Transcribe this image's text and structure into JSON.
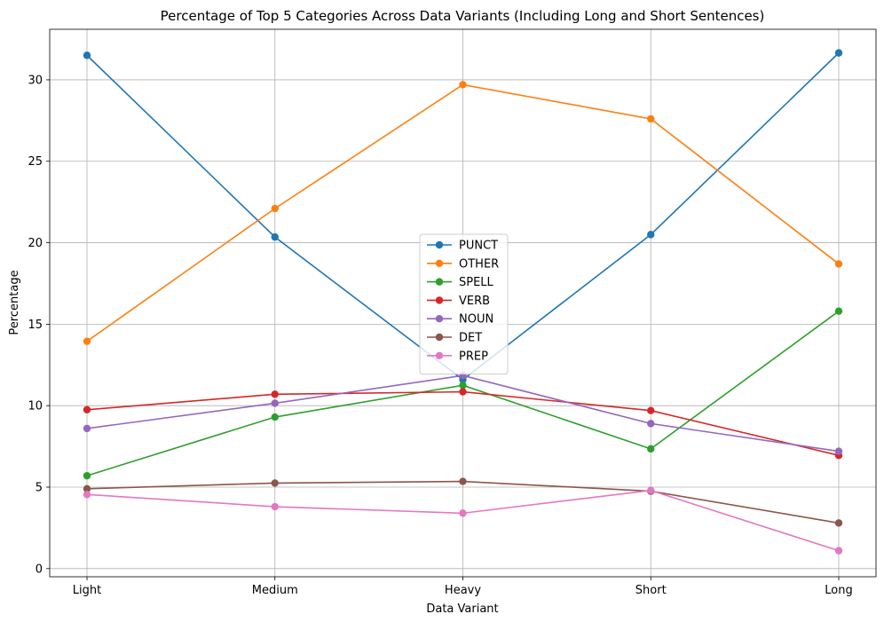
{
  "chart_data": {
    "type": "line",
    "title": "Percentage of Top 5 Categories Across Data Variants (Including Long and Short Sentences)",
    "xlabel": "Data Variant",
    "ylabel": "Percentage",
    "categories": [
      "Light",
      "Medium",
      "Heavy",
      "Short",
      "Long"
    ],
    "ylim": [
      -0.5,
      33.1
    ],
    "yticks": [
      0,
      5,
      10,
      15,
      20,
      25,
      30
    ],
    "grid": true,
    "legend_position": "center",
    "series": [
      {
        "name": "PUNCT",
        "color": "#1f77b4",
        "values": [
          31.5,
          20.35,
          11.6,
          20.5,
          31.65
        ]
      },
      {
        "name": "OTHER",
        "color": "#ff7f0e",
        "values": [
          13.95,
          22.1,
          29.7,
          27.6,
          18.7
        ]
      },
      {
        "name": "SPELL",
        "color": "#2ca02c",
        "values": [
          5.7,
          9.3,
          11.25,
          7.35,
          15.8
        ]
      },
      {
        "name": "VERB",
        "color": "#d62728",
        "values": [
          9.75,
          10.7,
          10.85,
          9.7,
          6.95
        ]
      },
      {
        "name": "NOUN",
        "color": "#9467bd",
        "values": [
          8.6,
          10.15,
          11.85,
          8.9,
          7.2
        ]
      },
      {
        "name": "DET",
        "color": "#8c564b",
        "values": [
          4.9,
          5.25,
          5.35,
          4.75,
          2.8
        ]
      },
      {
        "name": "PREP",
        "color": "#e377c2",
        "values": [
          4.55,
          3.8,
          3.4,
          4.8,
          1.1
        ]
      }
    ]
  }
}
